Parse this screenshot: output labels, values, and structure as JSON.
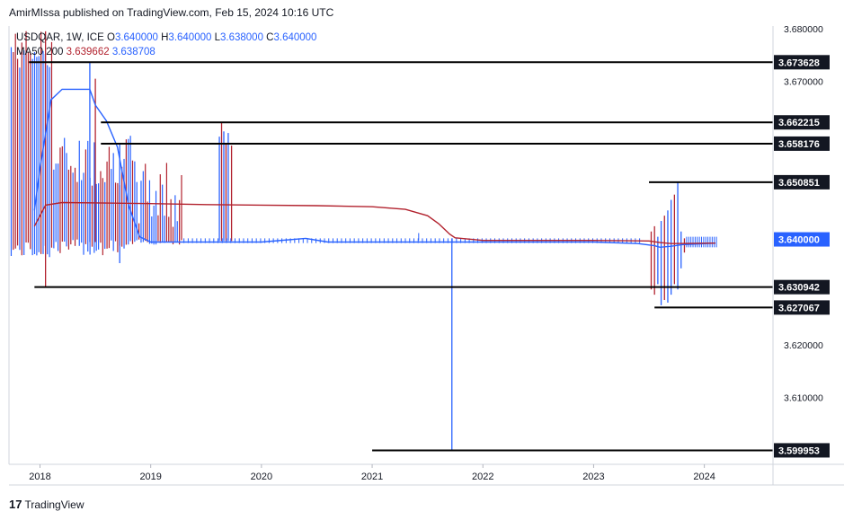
{
  "header": {
    "text": "AmirMIssa published on TradingView.com, Feb 15, 2024 10:16 UTC"
  },
  "legend": {
    "symbol": "USDQAR, 1W, ICE",
    "open_label": "O",
    "open": "3.640000",
    "high_label": "H",
    "high": "3.640000",
    "low_label": "L",
    "low": "3.638000",
    "close_label": "C",
    "close": "3.640000",
    "ma_label": "MA50 200",
    "ma50": "3.639662",
    "ma200": "3.638708"
  },
  "footer": {
    "logo": "17",
    "brand": "TradingView"
  },
  "colors": {
    "up": "#2962ff",
    "down": "#b2222e",
    "ma50": "#2962ff",
    "ma200": "#b2222e",
    "hline": "#000000",
    "grid": "#e0e3eb"
  },
  "chart_data": {
    "type": "line",
    "symbol": "USDQAR",
    "interval": "1W",
    "x_ticks": [
      "2018",
      "2019",
      "2020",
      "2021",
      "2022",
      "2023",
      "2024"
    ],
    "y_ticks": [
      "3.680000",
      "3.670000",
      "3.620000",
      "3.610000"
    ],
    "ylim": [
      3.5973,
      3.6805
    ],
    "grid": false,
    "last_price": "3.640000",
    "horizontal_levels": [
      {
        "value": 3.673628,
        "label": "3.673628",
        "x_start": 2017.9
      },
      {
        "value": 3.662215,
        "label": "3.662215",
        "x_start": 2018.55
      },
      {
        "value": 3.658176,
        "label": "3.658176",
        "x_start": 2018.55
      },
      {
        "value": 3.650851,
        "label": "3.650851",
        "x_start": 2023.5
      },
      {
        "value": 3.630942,
        "label": "3.630942",
        "x_start": 2017.95
      },
      {
        "value": 3.627067,
        "label": "3.627067",
        "x_start": 2023.55
      },
      {
        "value": 3.599953,
        "label": "3.599953",
        "x_start": 2021.0
      }
    ],
    "series": [
      {
        "name": "MA50",
        "color": "#2962ff",
        "x": [
          2017.95,
          2018.0,
          2018.1,
          2018.2,
          2018.25,
          2018.45,
          2018.5,
          2018.6,
          2018.7,
          2018.8,
          2018.9,
          2019.0,
          2019.5,
          2020.0,
          2020.4,
          2020.6,
          2021.0,
          2022.0,
          2023.0,
          2023.4,
          2023.55,
          2023.6,
          2023.7,
          2023.8,
          2024.1
        ],
        "y": [
          3.6455,
          3.6535,
          3.6665,
          3.6685,
          3.6685,
          3.6685,
          3.6655,
          3.6625,
          3.6575,
          3.6465,
          3.6405,
          3.6395,
          3.6395,
          3.6395,
          3.6402,
          3.6395,
          3.6395,
          3.6395,
          3.6395,
          3.6392,
          3.6388,
          3.6385,
          3.6387,
          3.639,
          3.6393
        ]
      },
      {
        "name": "MA200",
        "color": "#b2222e",
        "x": [
          2017.95,
          2018.0,
          2018.05,
          2018.2,
          2019.0,
          2019.5,
          2020.0,
          2020.5,
          2021.0,
          2021.3,
          2021.5,
          2021.6,
          2021.7,
          2021.75,
          2022.0,
          2023.0,
          2023.5,
          2023.6,
          2023.7,
          2024.1
        ],
        "y": [
          3.6425,
          3.6445,
          3.6465,
          3.647,
          3.6468,
          3.6466,
          3.6465,
          3.6464,
          3.6462,
          3.6457,
          3.6445,
          3.643,
          3.641,
          3.6403,
          3.6398,
          3.6398,
          3.6397,
          3.6394,
          3.6392,
          3.6393
        ]
      }
    ]
  }
}
